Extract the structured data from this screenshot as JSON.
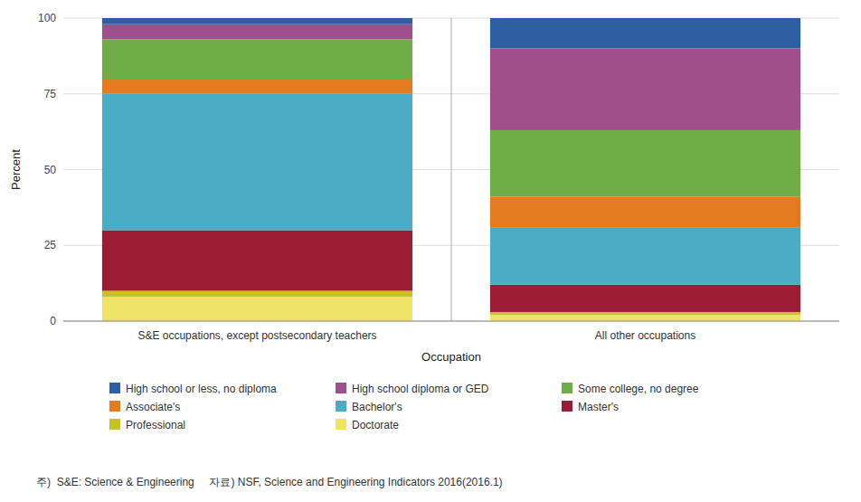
{
  "chart_data": {
    "type": "bar",
    "stacked": true,
    "grid": true,
    "legend": "bottom",
    "xlabel": "Occupation",
    "ylabel": "Percent",
    "footnote": "주)  S&E: Science & Engineering     자료) NSF, Science and Engineering Indicators 2016(2016.1)",
    "categories": [
      "S&E occupations, except postsecondary teachers",
      "All other occupations"
    ],
    "ylim": [
      0,
      100
    ],
    "yticks": [
      0,
      25,
      50,
      75,
      100
    ],
    "series": [
      {
        "name": "Doctorate",
        "color": "#f0e467",
        "values": [
          8,
          2
        ]
      },
      {
        "name": "Professional",
        "color": "#c6c227",
        "values": [
          2,
          1
        ]
      },
      {
        "name": "Master's",
        "color": "#9b1c35",
        "values": [
          20,
          9
        ]
      },
      {
        "name": "Bachelor's",
        "color": "#4bacc6",
        "values": [
          45,
          19
        ]
      },
      {
        "name": "Associate's",
        "color": "#e47b20",
        "values": [
          5,
          10
        ]
      },
      {
        "name": "Some college, no degree",
        "color": "#70ad47",
        "values": [
          13,
          22
        ]
      },
      {
        "name": "High school diploma or GED",
        "color": "#9e4f8c",
        "values": [
          5,
          27
        ]
      },
      {
        "name": "High school or less, no diploma",
        "color": "#2e5fa3",
        "values": [
          2,
          10
        ]
      }
    ]
  }
}
